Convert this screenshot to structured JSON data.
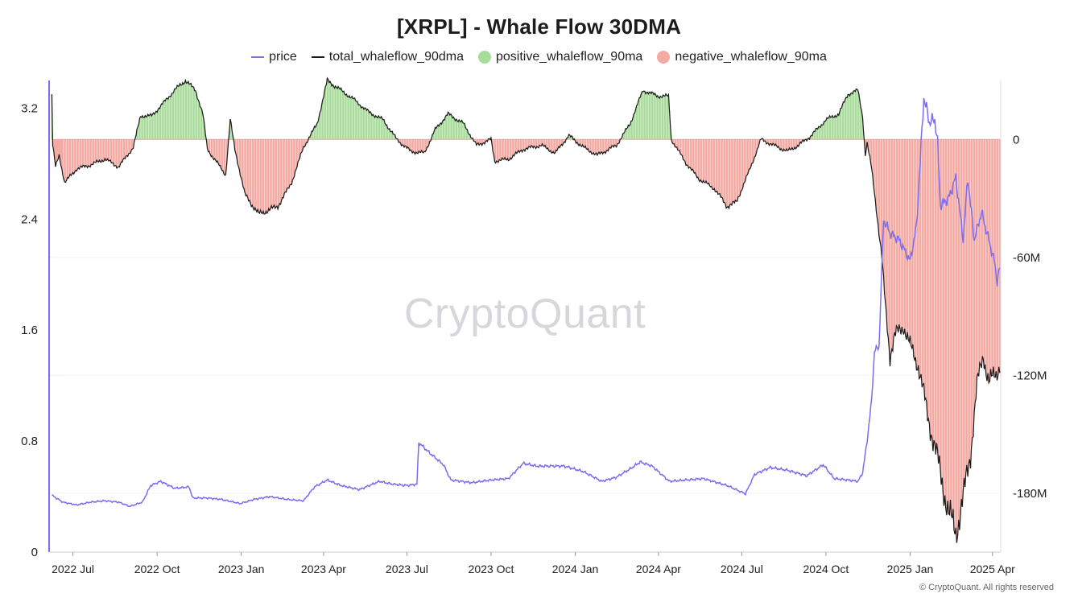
{
  "header": {
    "title": "[XRPL] - Whale Flow 30DMA",
    "watermark": "CryptoQuant",
    "copyright": "© CryptoQuant. All rights reserved"
  },
  "colors": {
    "price": "#7b6cf0",
    "total": "#1a1a1a",
    "positive": "#a8dc9a",
    "negative": "#f4aaa3",
    "left_axis": "#7b6cf0"
  },
  "chart_data": {
    "type": "line",
    "legend": [
      {
        "name": "price",
        "kind": "line",
        "color": "#7b6cf0"
      },
      {
        "name": "total_whaleflow_90dma",
        "kind": "line",
        "color": "#1a1a1a"
      },
      {
        "name": "positive_whaleflow_90ma",
        "kind": "dot",
        "color": "#a8dc9a"
      },
      {
        "name": "negative_whaleflow_90ma",
        "kind": "dot",
        "color": "#f4aaa3"
      }
    ],
    "x_range": [
      "2022-06-05",
      "2025-04-10"
    ],
    "x_ticks": [
      {
        "label": "2022 Jul",
        "date": "2022-07-01"
      },
      {
        "label": "2022 Oct",
        "date": "2022-10-01"
      },
      {
        "label": "2023 Jan",
        "date": "2023-01-01"
      },
      {
        "label": "2023 Apr",
        "date": "2023-04-01"
      },
      {
        "label": "2023 Jul",
        "date": "2023-07-01"
      },
      {
        "label": "2023 Oct",
        "date": "2023-10-01"
      },
      {
        "label": "2024 Jan",
        "date": "2024-01-01"
      },
      {
        "label": "2024 Apr",
        "date": "2024-04-01"
      },
      {
        "label": "2024 Jul",
        "date": "2024-07-01"
      },
      {
        "label": "2024 Oct",
        "date": "2024-10-01"
      },
      {
        "label": "2025 Jan",
        "date": "2025-01-01"
      },
      {
        "label": "2025 Apr",
        "date": "2025-04-01"
      }
    ],
    "y_left": {
      "min": 0,
      "max": 3.4,
      "ticks": [
        {
          "value": 0,
          "label": "0"
        },
        {
          "value": 0.8,
          "label": "0.8"
        },
        {
          "value": 1.6,
          "label": "1.6"
        },
        {
          "value": 2.4,
          "label": "2.4"
        },
        {
          "value": 3.2,
          "label": "3.2"
        }
      ]
    },
    "y_right": {
      "min": -210,
      "max": 30,
      "unit": "M",
      "ticks": [
        {
          "value": 0,
          "label": "0"
        },
        {
          "value": -60,
          "label": "-60M"
        },
        {
          "value": -120,
          "label": "-120M"
        },
        {
          "value": -180,
          "label": "-180M"
        }
      ]
    },
    "price": [
      [
        "2022-06-08",
        0.41
      ],
      [
        "2022-06-20",
        0.36
      ],
      [
        "2022-07-05",
        0.34
      ],
      [
        "2022-07-20",
        0.36
      ],
      [
        "2022-08-05",
        0.37
      ],
      [
        "2022-08-20",
        0.36
      ],
      [
        "2022-09-01",
        0.33
      ],
      [
        "2022-09-15",
        0.36
      ],
      [
        "2022-09-24",
        0.48
      ],
      [
        "2022-10-05",
        0.51
      ],
      [
        "2022-10-20",
        0.46
      ],
      [
        "2022-11-05",
        0.47
      ],
      [
        "2022-11-09",
        0.39
      ],
      [
        "2022-11-25",
        0.39
      ],
      [
        "2022-12-10",
        0.38
      ],
      [
        "2022-12-31",
        0.35
      ],
      [
        "2023-01-15",
        0.38
      ],
      [
        "2023-02-01",
        0.4
      ],
      [
        "2023-02-20",
        0.38
      ],
      [
        "2023-03-10",
        0.37
      ],
      [
        "2023-03-22",
        0.47
      ],
      [
        "2023-04-05",
        0.52
      ],
      [
        "2023-04-20",
        0.48
      ],
      [
        "2023-05-10",
        0.45
      ],
      [
        "2023-06-01",
        0.51
      ],
      [
        "2023-06-15",
        0.49
      ],
      [
        "2023-07-01",
        0.48
      ],
      [
        "2023-07-12",
        0.49
      ],
      [
        "2023-07-14",
        0.79
      ],
      [
        "2023-07-25",
        0.72
      ],
      [
        "2023-08-10",
        0.63
      ],
      [
        "2023-08-18",
        0.52
      ],
      [
        "2023-09-10",
        0.5
      ],
      [
        "2023-10-01",
        0.52
      ],
      [
        "2023-10-20",
        0.53
      ],
      [
        "2023-11-05",
        0.64
      ],
      [
        "2023-11-20",
        0.62
      ],
      [
        "2023-12-05",
        0.62
      ],
      [
        "2023-12-20",
        0.62
      ],
      [
        "2024-01-10",
        0.58
      ],
      [
        "2024-01-30",
        0.51
      ],
      [
        "2024-02-15",
        0.54
      ],
      [
        "2024-03-01",
        0.6
      ],
      [
        "2024-03-12",
        0.65
      ],
      [
        "2024-03-25",
        0.62
      ],
      [
        "2024-04-13",
        0.51
      ],
      [
        "2024-05-01",
        0.52
      ],
      [
        "2024-05-20",
        0.53
      ],
      [
        "2024-06-15",
        0.48
      ],
      [
        "2024-07-05",
        0.42
      ],
      [
        "2024-07-15",
        0.56
      ],
      [
        "2024-08-01",
        0.61
      ],
      [
        "2024-08-20",
        0.59
      ],
      [
        "2024-09-10",
        0.55
      ],
      [
        "2024-09-28",
        0.63
      ],
      [
        "2024-10-10",
        0.53
      ],
      [
        "2024-10-25",
        0.52
      ],
      [
        "2024-11-05",
        0.51
      ],
      [
        "2024-11-10",
        0.57
      ],
      [
        "2024-11-15",
        0.8
      ],
      [
        "2024-11-20",
        1.1
      ],
      [
        "2024-11-23",
        1.45
      ],
      [
        "2024-11-28",
        1.48
      ],
      [
        "2024-12-03",
        2.4
      ],
      [
        "2024-12-10",
        2.3
      ],
      [
        "2024-12-20",
        2.25
      ],
      [
        "2025-01-01",
        2.1
      ],
      [
        "2025-01-08",
        2.35
      ],
      [
        "2025-01-16",
        3.28
      ],
      [
        "2025-01-22",
        3.1
      ],
      [
        "2025-01-28",
        3.12
      ],
      [
        "2025-01-31",
        2.95
      ],
      [
        "2025-02-03",
        2.5
      ],
      [
        "2025-02-12",
        2.55
      ],
      [
        "2025-02-20",
        2.7
      ],
      [
        "2025-02-28",
        2.25
      ],
      [
        "2025-03-05",
        2.7
      ],
      [
        "2025-03-12",
        2.25
      ],
      [
        "2025-03-20",
        2.45
      ],
      [
        "2025-03-28",
        2.25
      ],
      [
        "2025-04-03",
        2.1
      ],
      [
        "2025-04-06",
        1.95
      ],
      [
        "2025-04-09",
        2.05
      ]
    ],
    "total_whaleflow_90dma": [
      [
        "2022-06-08",
        23
      ],
      [
        "2022-06-09",
        -3
      ],
      [
        "2022-06-12",
        -14
      ],
      [
        "2022-06-16",
        -8
      ],
      [
        "2022-06-22",
        -22
      ],
      [
        "2022-07-05",
        -15
      ],
      [
        "2022-07-20",
        -13
      ],
      [
        "2022-08-05",
        -10
      ],
      [
        "2022-08-20",
        -14
      ],
      [
        "2022-09-05",
        -4
      ],
      [
        "2022-09-13",
        12
      ],
      [
        "2022-09-25",
        12
      ],
      [
        "2022-10-05",
        17
      ],
      [
        "2022-10-20",
        25
      ],
      [
        "2022-11-01",
        30
      ],
      [
        "2022-11-12",
        25
      ],
      [
        "2022-11-20",
        13
      ],
      [
        "2022-11-25",
        -5
      ],
      [
        "2022-12-15",
        -18
      ],
      [
        "2022-12-20",
        10
      ],
      [
        "2022-12-25",
        -5
      ],
      [
        "2023-01-05",
        -28
      ],
      [
        "2023-01-20",
        -38
      ],
      [
        "2023-02-10",
        -34
      ],
      [
        "2023-02-25",
        -22
      ],
      [
        "2023-03-10",
        -4
      ],
      [
        "2023-03-25",
        8
      ],
      [
        "2023-04-05",
        30
      ],
      [
        "2023-04-20",
        25
      ],
      [
        "2023-05-05",
        20
      ],
      [
        "2023-05-20",
        14
      ],
      [
        "2023-06-05",
        10
      ],
      [
        "2023-06-20",
        0
      ],
      [
        "2023-07-05",
        -6
      ],
      [
        "2023-07-20",
        -7
      ],
      [
        "2023-08-01",
        5
      ],
      [
        "2023-08-15",
        13
      ],
      [
        "2023-09-01",
        8
      ],
      [
        "2023-09-15",
        -3
      ],
      [
        "2023-10-01",
        0
      ],
      [
        "2023-10-05",
        -11
      ],
      [
        "2023-10-20",
        -10
      ],
      [
        "2023-11-05",
        -5
      ],
      [
        "2023-11-25",
        -3
      ],
      [
        "2023-12-10",
        -7
      ],
      [
        "2023-12-25",
        2
      ],
      [
        "2024-01-10",
        -4
      ],
      [
        "2024-01-25",
        -8
      ],
      [
        "2024-02-15",
        -3
      ],
      [
        "2024-03-01",
        8
      ],
      [
        "2024-03-15",
        25
      ],
      [
        "2024-04-01",
        22
      ],
      [
        "2024-04-12",
        22
      ],
      [
        "2024-04-15",
        0
      ],
      [
        "2024-05-01",
        -12
      ],
      [
        "2024-05-15",
        -20
      ],
      [
        "2024-06-01",
        -25
      ],
      [
        "2024-06-15",
        -34
      ],
      [
        "2024-06-25",
        -32
      ],
      [
        "2024-07-10",
        -15
      ],
      [
        "2024-07-22",
        0
      ],
      [
        "2024-08-05",
        -3
      ],
      [
        "2024-08-20",
        -6
      ],
      [
        "2024-09-01",
        -3
      ],
      [
        "2024-09-15",
        2
      ],
      [
        "2024-10-01",
        10
      ],
      [
        "2024-10-15",
        13
      ],
      [
        "2024-10-25",
        23
      ],
      [
        "2024-11-05",
        25
      ],
      [
        "2024-11-10",
        12
      ],
      [
        "2024-11-13",
        -8
      ],
      [
        "2024-11-15",
        -2
      ],
      [
        "2024-11-20",
        -15
      ],
      [
        "2024-11-25",
        -35
      ],
      [
        "2024-12-01",
        -60
      ],
      [
        "2024-12-05",
        -85
      ],
      [
        "2024-12-10",
        -110
      ],
      [
        "2024-12-15",
        -100
      ],
      [
        "2024-12-25",
        -95
      ],
      [
        "2025-01-01",
        -105
      ],
      [
        "2025-01-10",
        -115
      ],
      [
        "2025-01-20",
        -140
      ],
      [
        "2025-02-01",
        -165
      ],
      [
        "2025-02-12",
        -190
      ],
      [
        "2025-02-20",
        -200
      ],
      [
        "2025-03-01",
        -180
      ],
      [
        "2025-03-08",
        -160
      ],
      [
        "2025-03-15",
        -125
      ],
      [
        "2025-03-22",
        -110
      ],
      [
        "2025-03-28",
        -123
      ],
      [
        "2025-04-05",
        -120
      ],
      [
        "2025-04-09",
        -114
      ]
    ]
  }
}
